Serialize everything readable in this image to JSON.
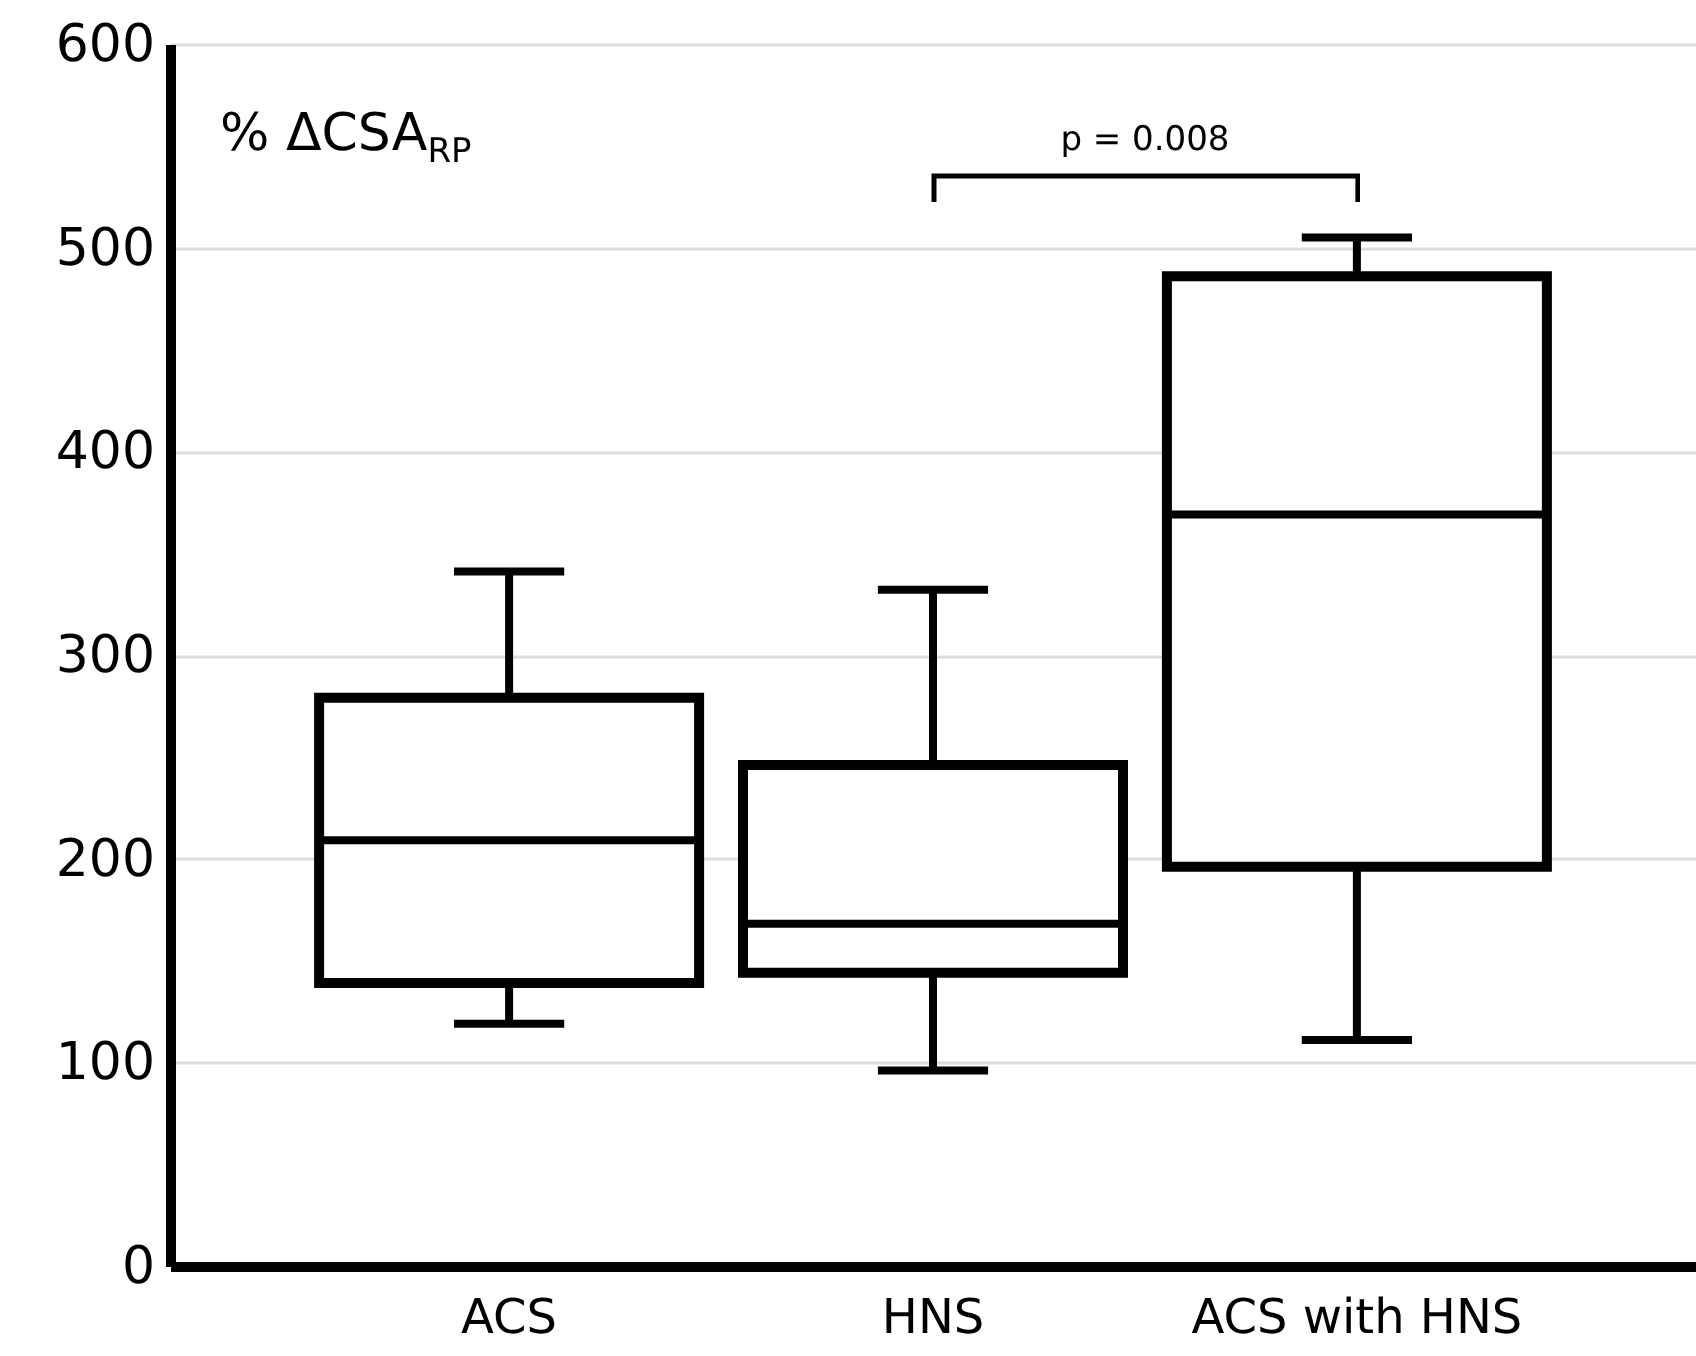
{
  "chart_data": {
    "type": "box",
    "ylabel": "% ΔCSA$_{RP}$",
    "categories": [
      "ACS",
      "HNS",
      "ACS with HNS"
    ],
    "boxes": [
      {
        "low": 119,
        "q1": 139,
        "median": 209,
        "q3": 279,
        "high": 341
      },
      {
        "low": 96,
        "q1": 144,
        "median": 168,
        "q3": 246,
        "high": 332
      },
      {
        "low": 111,
        "q1": 196,
        "median": 369,
        "q3": 486,
        "high": 505
      }
    ],
    "color": "#000000",
    "ylim": [
      0,
      600
    ],
    "yticks": [
      0,
      100,
      200,
      300,
      400,
      500,
      600
    ],
    "grid": "y",
    "annotations": [
      "p = 0.008"
    ]
  }
}
